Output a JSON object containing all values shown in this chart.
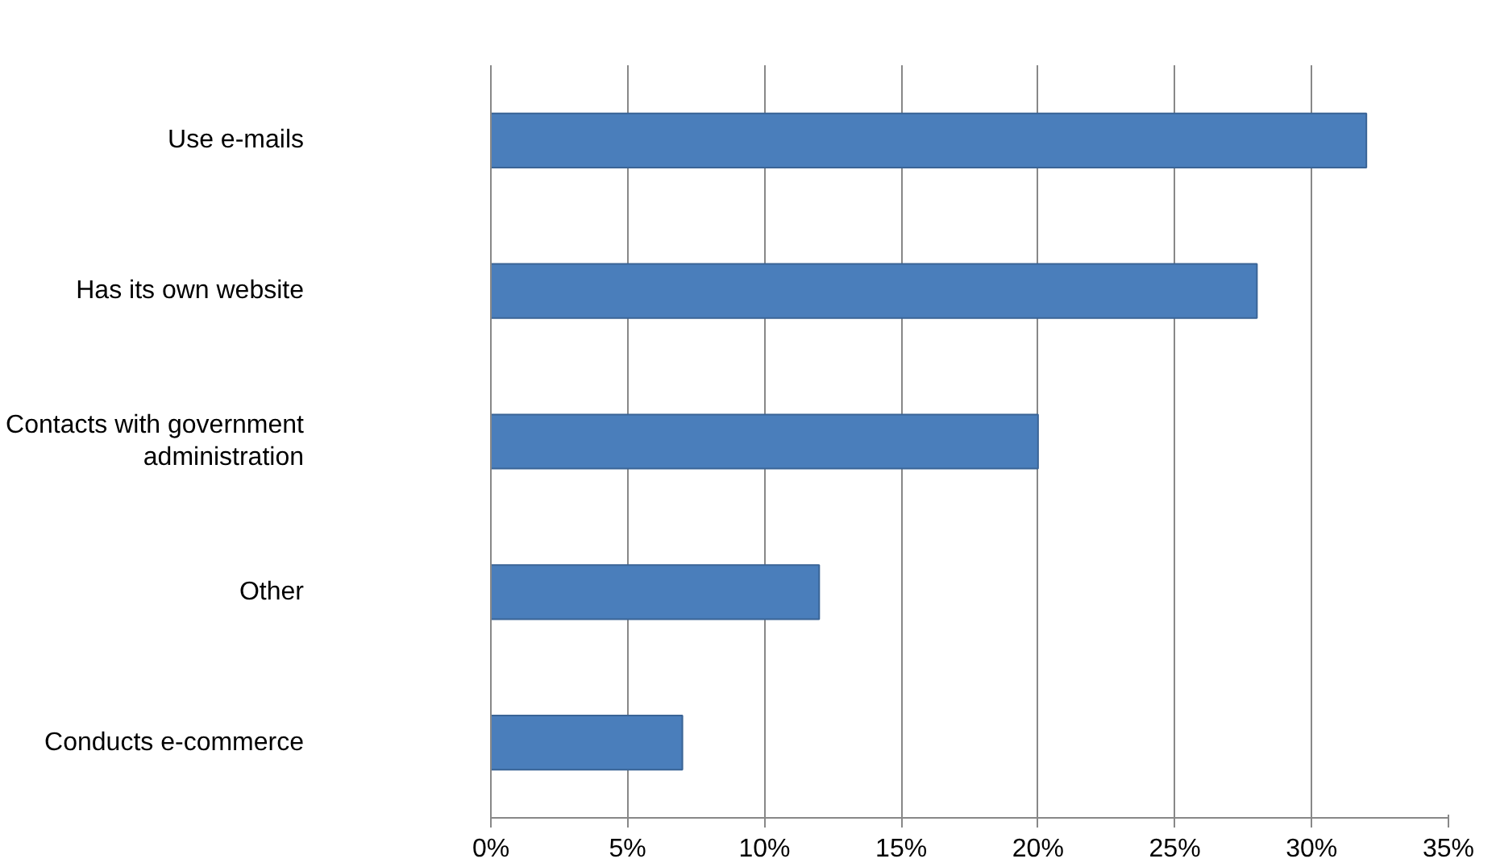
{
  "chart_data": {
    "type": "bar",
    "orientation": "horizontal",
    "categories": [
      "Use e-mails",
      "Has its own website",
      "Contacts with government administration",
      "Other",
      "Conducts e-commerce"
    ],
    "values": [
      32,
      28,
      20,
      12,
      7
    ],
    "color": "#4a7ebb",
    "xlim": [
      0,
      35
    ],
    "xticks": [
      {
        "value": 0,
        "label": "0%"
      },
      {
        "value": 5,
        "label": "5%"
      },
      {
        "value": 10,
        "label": "10%"
      },
      {
        "value": 15,
        "label": "15%"
      },
      {
        "value": 20,
        "label": "20%"
      },
      {
        "value": 25,
        "label": "25%"
      },
      {
        "value": 30,
        "label": "30%"
      },
      {
        "value": 35,
        "label": "35%"
      }
    ],
    "grid": "x"
  }
}
